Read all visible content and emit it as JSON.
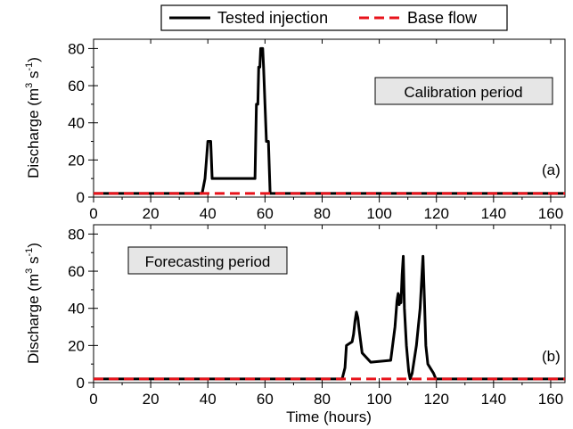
{
  "colors": {
    "tested": "#000000",
    "base": "#e8131b",
    "annot_bg": "#e6e6e6"
  },
  "legend": {
    "tested_label": "Tested injection",
    "base_label": "Base flow",
    "position": "top-center"
  },
  "chart_data": [
    {
      "type": "line",
      "panel_label": "(a)",
      "annotation": "Calibration period",
      "xlabel": "",
      "ylabel_main": "Discharge (m",
      "ylabel_sup1": "3",
      "ylabel_mid": " s",
      "ylabel_sup2": "-1",
      "ylabel_end": ")",
      "xlim": [
        0,
        165
      ],
      "ylim": [
        0,
        85
      ],
      "xticks": [
        0,
        20,
        40,
        60,
        80,
        100,
        120,
        140,
        160
      ],
      "yticks": [
        0,
        20,
        40,
        60,
        80
      ],
      "grid": false,
      "series": [
        {
          "name": "Tested injection",
          "points": [
            [
              0,
              2
            ],
            [
              38,
              2
            ],
            [
              39,
              10
            ],
            [
              40,
              30
            ],
            [
              41,
              30
            ],
            [
              41.5,
              10
            ],
            [
              42,
              10
            ],
            [
              55,
              10
            ],
            [
              56.5,
              10
            ],
            [
              57,
              50
            ],
            [
              57.5,
              50
            ],
            [
              57.8,
              70
            ],
            [
              58.2,
              70
            ],
            [
              58.5,
              80
            ],
            [
              59.2,
              80
            ],
            [
              59.5,
              70
            ],
            [
              60,
              50
            ],
            [
              60.5,
              30
            ],
            [
              61.2,
              30
            ],
            [
              61.8,
              2
            ],
            [
              165,
              2
            ]
          ]
        },
        {
          "name": "Base flow",
          "points": [
            [
              0,
              2
            ],
            [
              165,
              2
            ]
          ]
        }
      ]
    },
    {
      "type": "line",
      "panel_label": "(b)",
      "annotation": "Forecasting period",
      "xlabel": "Time (hours)",
      "ylabel_main": "Discharge (m",
      "ylabel_sup1": "3",
      "ylabel_mid": " s",
      "ylabel_sup2": "-1",
      "ylabel_end": ")",
      "xlim": [
        0,
        165
      ],
      "ylim": [
        0,
        85
      ],
      "xticks": [
        0,
        20,
        40,
        60,
        80,
        100,
        120,
        140,
        160
      ],
      "yticks": [
        0,
        20,
        40,
        60,
        80
      ],
      "grid": false,
      "series": [
        {
          "name": "Tested injection",
          "points": [
            [
              0,
              2
            ],
            [
              87,
              2
            ],
            [
              88,
              8
            ],
            [
              88.5,
              20
            ],
            [
              89.5,
              21
            ],
            [
              90.5,
              22
            ],
            [
              91,
              26
            ],
            [
              91.5,
              33
            ],
            [
              92,
              38
            ],
            [
              92.5,
              35
            ],
            [
              93,
              28
            ],
            [
              94,
              16
            ],
            [
              97,
              11
            ],
            [
              104,
              12
            ],
            [
              105.5,
              30
            ],
            [
              106.2,
              44
            ],
            [
              106.6,
              48
            ],
            [
              107,
              42
            ],
            [
              107.3,
              47
            ],
            [
              107.6,
              43
            ],
            [
              108,
              58
            ],
            [
              108.4,
              68
            ],
            [
              108.8,
              40
            ],
            [
              109.5,
              20
            ],
            [
              110.3,
              6
            ],
            [
              110.8,
              2
            ],
            [
              111.5,
              5
            ],
            [
              113,
              20
            ],
            [
              114.3,
              40
            ],
            [
              115,
              60
            ],
            [
              115.3,
              68
            ],
            [
              115.8,
              45
            ],
            [
              116.3,
              20
            ],
            [
              117,
              10
            ],
            [
              119,
              5
            ],
            [
              119.8,
              2
            ],
            [
              165,
              2
            ]
          ]
        },
        {
          "name": "Base flow",
          "points": [
            [
              0,
              2
            ],
            [
              165,
              2
            ]
          ]
        }
      ]
    }
  ]
}
